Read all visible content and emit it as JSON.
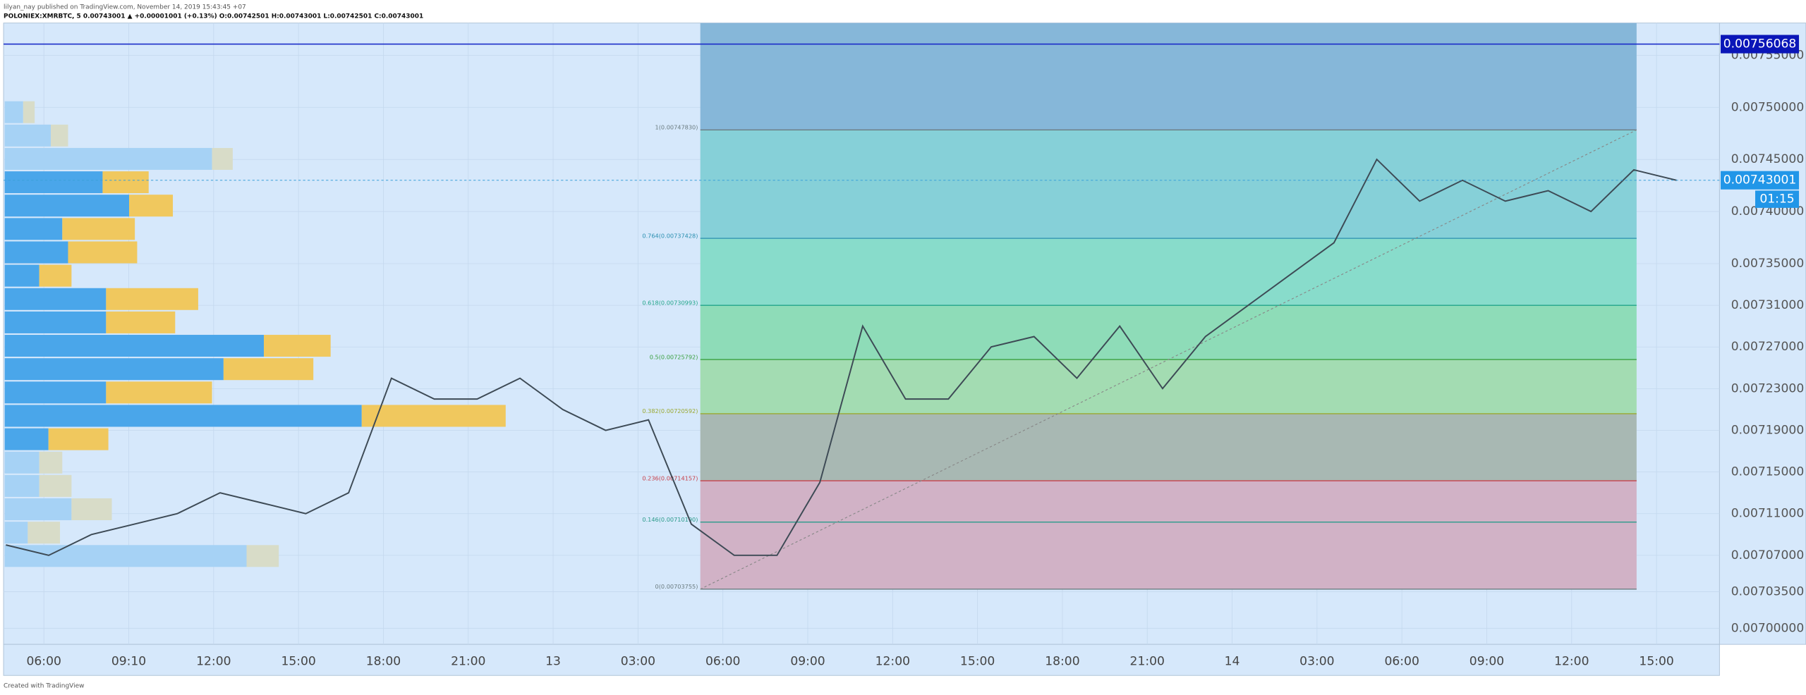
{
  "header": {
    "publisher": "lilyan_nay published on TradingView.com, November 14, 2019 15:43:45 +07",
    "symbol_line": "POLONIEX:XMRBTC, 5 0.00743001 ▲ +0.00001001 (+0.13%) O:0.00742501 H:0.00743001 L:0.00742501 C:0.00743001"
  },
  "price_chart": {
    "yticks": [
      {
        "value": 0.00755,
        "label": "0.00755000"
      },
      {
        "value": 0.0075,
        "label": "0.00750000"
      },
      {
        "value": 0.00745,
        "label": "0.00745000"
      },
      {
        "value": 0.0074,
        "label": "0.00740000"
      },
      {
        "value": 0.00735,
        "label": "0.00735000"
      },
      {
        "value": 0.00731,
        "label": "0.00731000"
      },
      {
        "value": 0.00727,
        "label": "0.00727000"
      },
      {
        "value": 0.00723,
        "label": "0.00723000"
      },
      {
        "value": 0.00719,
        "label": "0.00719000"
      },
      {
        "value": 0.00715,
        "label": "0.00715000"
      },
      {
        "value": 0.00711,
        "label": "0.00711000"
      },
      {
        "value": 0.00707,
        "label": "0.00707000"
      },
      {
        "value": 0.007035,
        "label": "0.00703500"
      },
      {
        "value": 0.007,
        "label": "0.00700000"
      }
    ],
    "time_labels": [
      "06:00",
      "09:10",
      "12:00",
      "15:00",
      "18:00",
      "21:00",
      "13",
      "03:00",
      "06:00",
      "09:00",
      "12:00",
      "15:00",
      "18:00",
      "21:00",
      "14",
      "03:00",
      "06:00",
      "09:00",
      "12:00",
      "15:00"
    ],
    "closes": [
      0.00708,
      0.00707,
      0.00709,
      0.0071,
      0.00711,
      0.00713,
      0.00712,
      0.00711,
      0.00713,
      0.00724,
      0.00722,
      0.00722,
      0.00724,
      0.00721,
      0.00719,
      0.0072,
      0.0071,
      0.00707,
      0.00707,
      0.00714,
      0.00729,
      0.00722,
      0.00722,
      0.00727,
      0.00728,
      0.00724,
      0.00729,
      0.00723,
      0.00728,
      0.00731,
      0.00734,
      0.00737,
      0.00745,
      0.00741,
      0.00743,
      0.00741,
      0.00742,
      0.0074,
      0.00744,
      0.00743
    ],
    "line_color": "#3d4a55",
    "volume_profile": {
      "buy": [
        16,
        40,
        180,
        85,
        108,
        50,
        55,
        30,
        88,
        88,
        225,
        190,
        88,
        310,
        38,
        30,
        30,
        58,
        20,
        210
      ],
      "sell": [
        10,
        15,
        18,
        40,
        38,
        63,
        60,
        28,
        80,
        60,
        58,
        78,
        92,
        125,
        52,
        20,
        28,
        35,
        28,
        28
      ]
    },
    "fib_levels": [
      {
        "label": "1(0.00747830)",
        "price": 0.0074783,
        "color": "#9ccbc8",
        "text_color": "#6b7c80"
      },
      {
        "label": "0.764(0.00737428)",
        "price": 0.00737428,
        "color": "#86d0d8",
        "text_color": "#2a8fb0"
      },
      {
        "label": "0.618(0.00730993)",
        "price": 0.00730993,
        "color": "#88dccb",
        "text_color": "#22a58a"
      },
      {
        "label": "0.5(0.00725792)",
        "price": 0.00725792,
        "color": "#8edcb8",
        "text_color": "#3aa040"
      },
      {
        "label": "0.382(0.00720592)",
        "price": 0.00720592,
        "color": "#a3dcb2",
        "text_color": "#9aa830"
      },
      {
        "label": "0.236(0.00714157)",
        "price": 0.00714157,
        "color": "#a8b8b3",
        "text_color": "#c8404a"
      },
      {
        "label": "0.146(0.00710190)",
        "price": 0.0071019,
        "color": "#d1b2c6",
        "text_color": "#2a9a8a"
      },
      {
        "label": "0(0.00703755)",
        "price": 0.00703755,
        "color": "#d1b2c6",
        "text_color": "#6b7c80"
      }
    ],
    "high_tag": {
      "label": "0.00756068",
      "price": 0.00756068
    },
    "last_tag": {
      "label": "0.00743001",
      "price": 0.00743001
    },
    "countdown": "01:15"
  },
  "footer": "Created with TradingView"
}
